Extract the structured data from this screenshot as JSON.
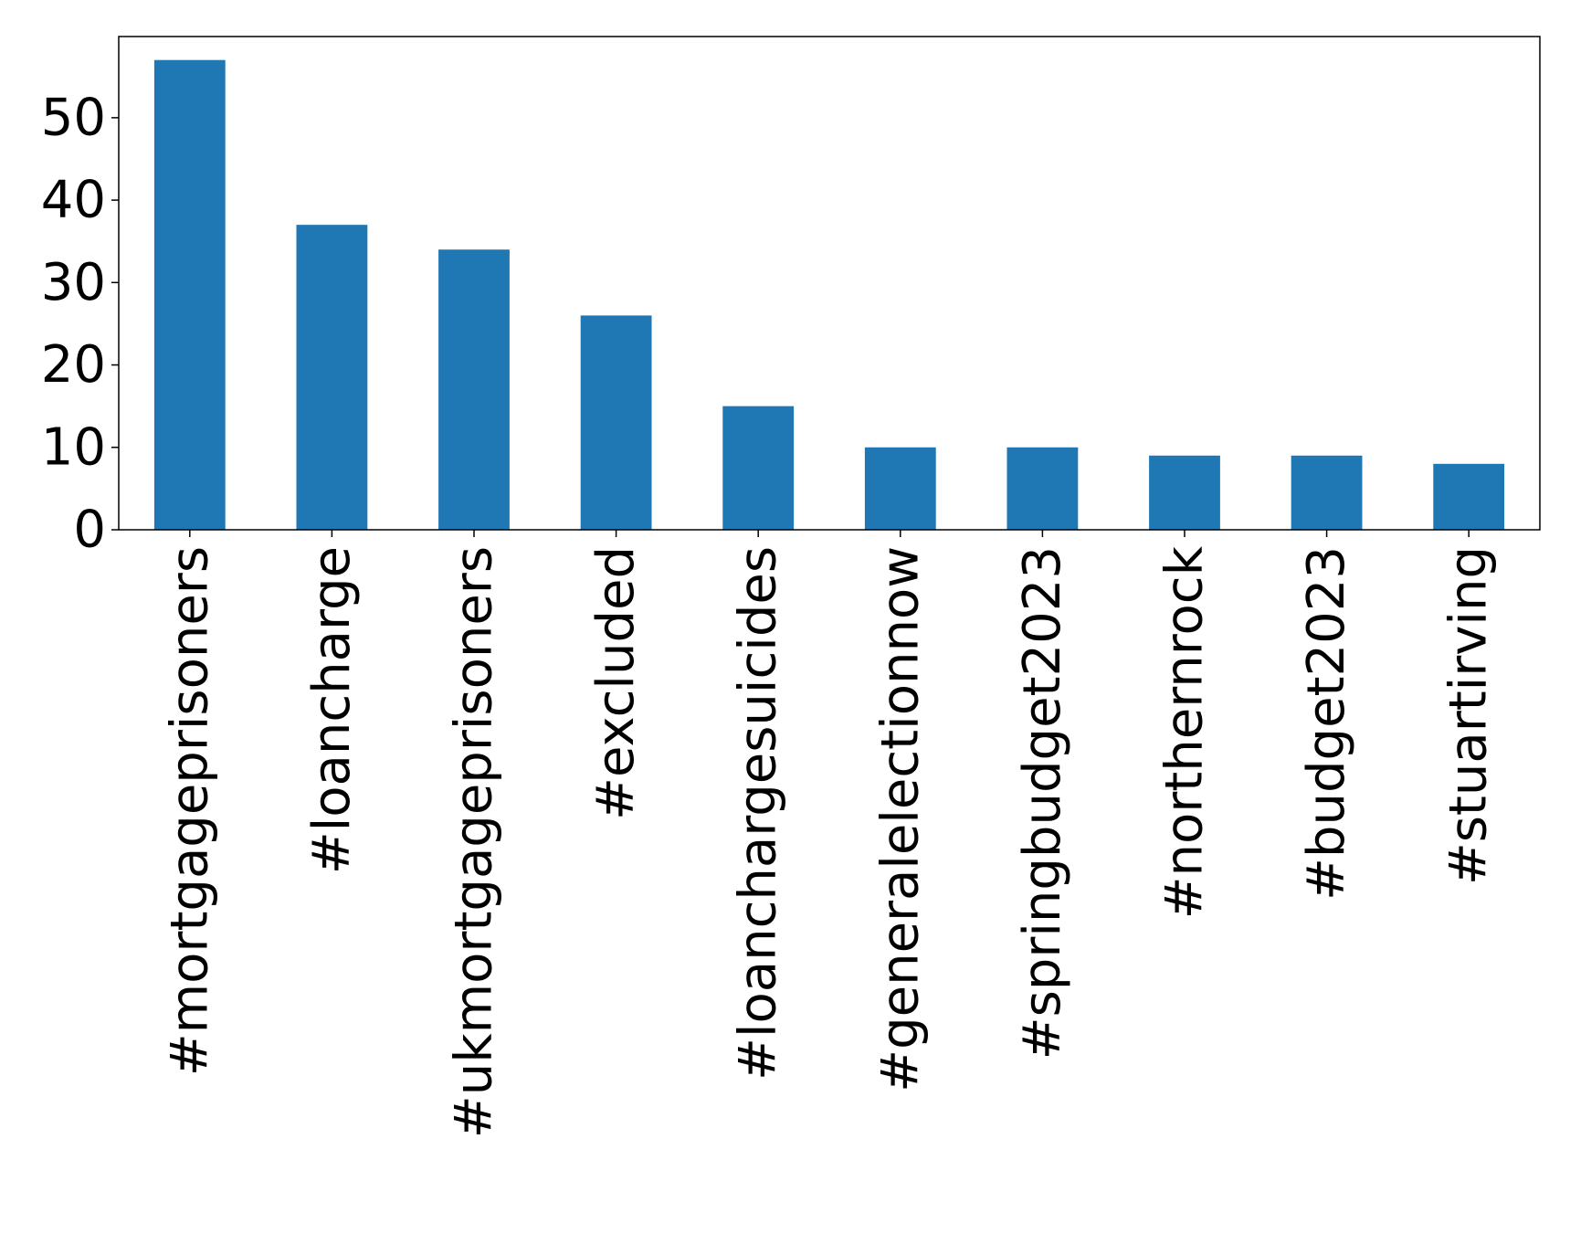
{
  "chart_data": {
    "type": "bar",
    "categories": [
      "#mortgageprisoners",
      "#loancharge",
      "#ukmortgageprisoners",
      "#excluded",
      "#loanchargesuicides",
      "#generalelectionnow",
      "#springbudget2023",
      "#northernrock",
      "#budget2023",
      "#stuartirving"
    ],
    "values": [
      57,
      37,
      34,
      26,
      15,
      10,
      10,
      9,
      9,
      8
    ],
    "title": "",
    "xlabel": "",
    "ylabel": "",
    "ylim": [
      0,
      59.85
    ],
    "yticks": [
      0,
      10,
      20,
      30,
      40,
      50
    ],
    "grid": false,
    "bar_color": "#1f77b4"
  }
}
